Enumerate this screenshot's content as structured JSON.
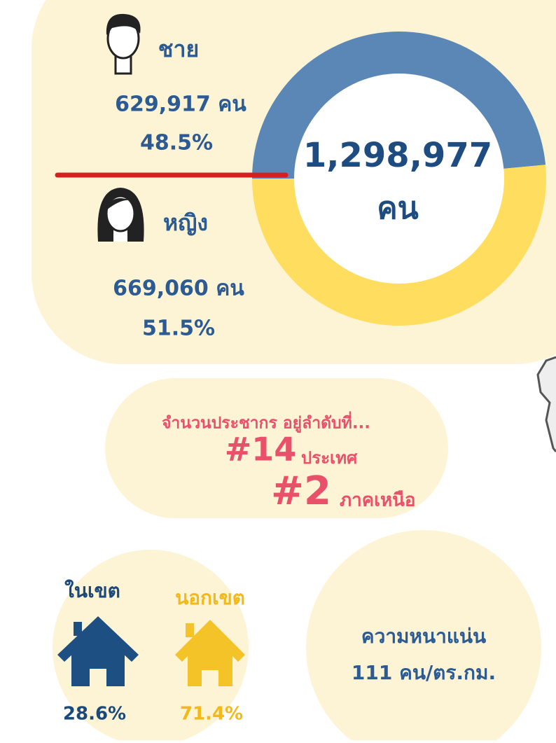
{
  "male": {
    "label": "ชาย",
    "count": "629,917 คน"
  },
  "female": {
    "label": "หญิง",
    "count": "669,060 คน"
  },
  "donut": {
    "total": "1,298,977",
    "unit": "คน",
    "values": [
      48.5,
      51.5
    ],
    "value_labels": [
      "48.5%",
      "51.5%"
    ],
    "colors": [
      "#5b87b7",
      "#fedd5f"
    ]
  },
  "rank": {
    "intro": "จำนวนประชากร อยู่ลำดับที่...",
    "items": [
      {
        "rank": "#14",
        "scope": "ประเทศ"
      },
      {
        "rank": "#2",
        "scope": "ภาคเหนือ"
      }
    ]
  },
  "area": {
    "inside": {
      "label": "ในเขต",
      "percent": "28.6%"
    },
    "outside": {
      "label": "นอกเขต",
      "percent": "71.4%"
    }
  },
  "density": {
    "label": "ความหนาแน่น",
    "value": "111 คน/ตร.กม."
  }
}
